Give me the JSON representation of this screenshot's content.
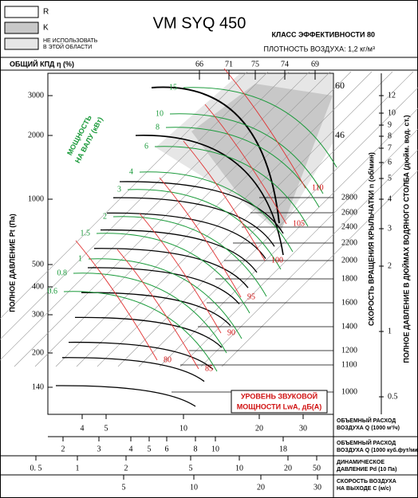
{
  "header": {
    "title": "VM SYQ 450",
    "efficiency_class": "КЛАСС ЭФФЕКТИВНОСТИ 80",
    "air_density": "ПЛОТНОСТЬ ВОЗДУХА: 1,2 кг/м³"
  },
  "legend": [
    {
      "label": "R"
    },
    {
      "label": "K"
    },
    {
      "label": [
        "НЕ ИСПОЛЬЗОВАТЬ",
        "В ЭТОЙ ОБЛАСТИ"
      ]
    }
  ],
  "efficiency": {
    "label": "ОБЩИЙ КПД η (%)",
    "ticks": [
      "66",
      "71",
      "75",
      "74",
      "69"
    ]
  },
  "pressure_axis": {
    "label": "ПОЛНОЕ ДАВЛЕНИЕ Pt (Па)",
    "ticks": [
      "3000",
      "2000",
      "1000",
      "500",
      "400",
      "300",
      "200",
      "140"
    ]
  },
  "rpm_axis": {
    "label": "СКОРОСТЬ ВРАЩЕНИЯ КРЫЛЬЧАТКИ n (об/мин)",
    "ticks": [
      "2800",
      "2600",
      "2400",
      "2200",
      "2000",
      "1800",
      "1600",
      "1400",
      "1200",
      "1100",
      "1000"
    ],
    "upper": [
      "60",
      "46"
    ]
  },
  "inch_axis": {
    "label": "ПОЛНОЕ ДАВЛЕНИЕ В ДЮЙМАХ ВОДЯНОГО СТОЛБА (дюйм. вод. ст.)",
    "ticks": [
      "12",
      "10",
      "9",
      "8",
      "7",
      "6",
      "5",
      "4",
      "3",
      "2",
      "1",
      "0.5"
    ]
  },
  "power": {
    "label": [
      "МОЩНОСТЬ",
      "НА ВАЛУ (кВт)"
    ],
    "values": [
      "15",
      "10",
      "8",
      "6",
      "4",
      "3",
      "2",
      "1.5",
      "1",
      "0.8",
      "0.6"
    ]
  },
  "noise": {
    "label": [
      "УРОВЕНЬ ЗВУКОВОЙ",
      "МОЩНОСТИ LwA, дБ(А)"
    ],
    "values": [
      "110",
      "105",
      "100",
      "95",
      "90",
      "85",
      "80"
    ]
  },
  "scales": [
    {
      "label": [
        "ОБЪЕМНЫЙ РАСХОД",
        "ВОЗДУХА Q (1000 м³/ч)"
      ],
      "ticks": [
        "4",
        "5",
        "10",
        "20",
        "30"
      ]
    },
    {
      "label": [
        "ОБЪЕМНЫЙ РАСХОД",
        "ВОЗДУХА Q (1000 куб.фут/мин)"
      ],
      "ticks": [
        "2",
        "3",
        "4",
        "5",
        "6",
        "8",
        "10",
        "18"
      ]
    },
    {
      "label": [
        "ДИНАМИЧЕСКОЕ",
        "ДАВЛЕНИЕ Pd (10 Па)"
      ],
      "ticks": [
        "0. 5",
        "1",
        "2",
        "5",
        "10",
        "20",
        "50"
      ]
    },
    {
      "label": [
        "СКОРОСТЬ ВОЗДУХА",
        "НА ВЫХОДЕ С (м/с)"
      ],
      "ticks": [
        "5",
        "10",
        "20",
        "30"
      ]
    }
  ]
}
